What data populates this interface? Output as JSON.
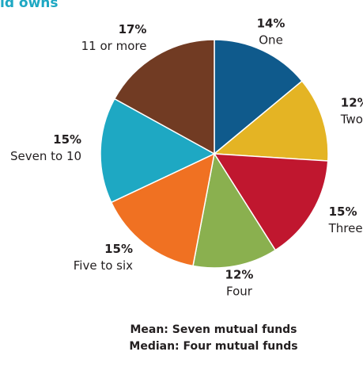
{
  "chart_data": {
    "type": "pie",
    "title": "ld owns",
    "categories": [
      "One",
      "Two",
      "Three",
      "Four",
      "Five to six",
      "Seven to 10",
      "11 or more"
    ],
    "values": [
      14,
      12,
      15,
      12,
      15,
      15,
      17
    ],
    "value_labels": [
      "14%",
      "12%",
      "15%",
      "12%",
      "15%",
      "15%",
      "17%"
    ],
    "colors": [
      "#0f5a8c",
      "#e4b424",
      "#c0172f",
      "#8ab04f",
      "#f07122",
      "#1ea8c3",
      "#713b23"
    ],
    "notes": [
      "Mean: Seven mutual funds",
      "Median: Four mutual funds"
    ]
  }
}
